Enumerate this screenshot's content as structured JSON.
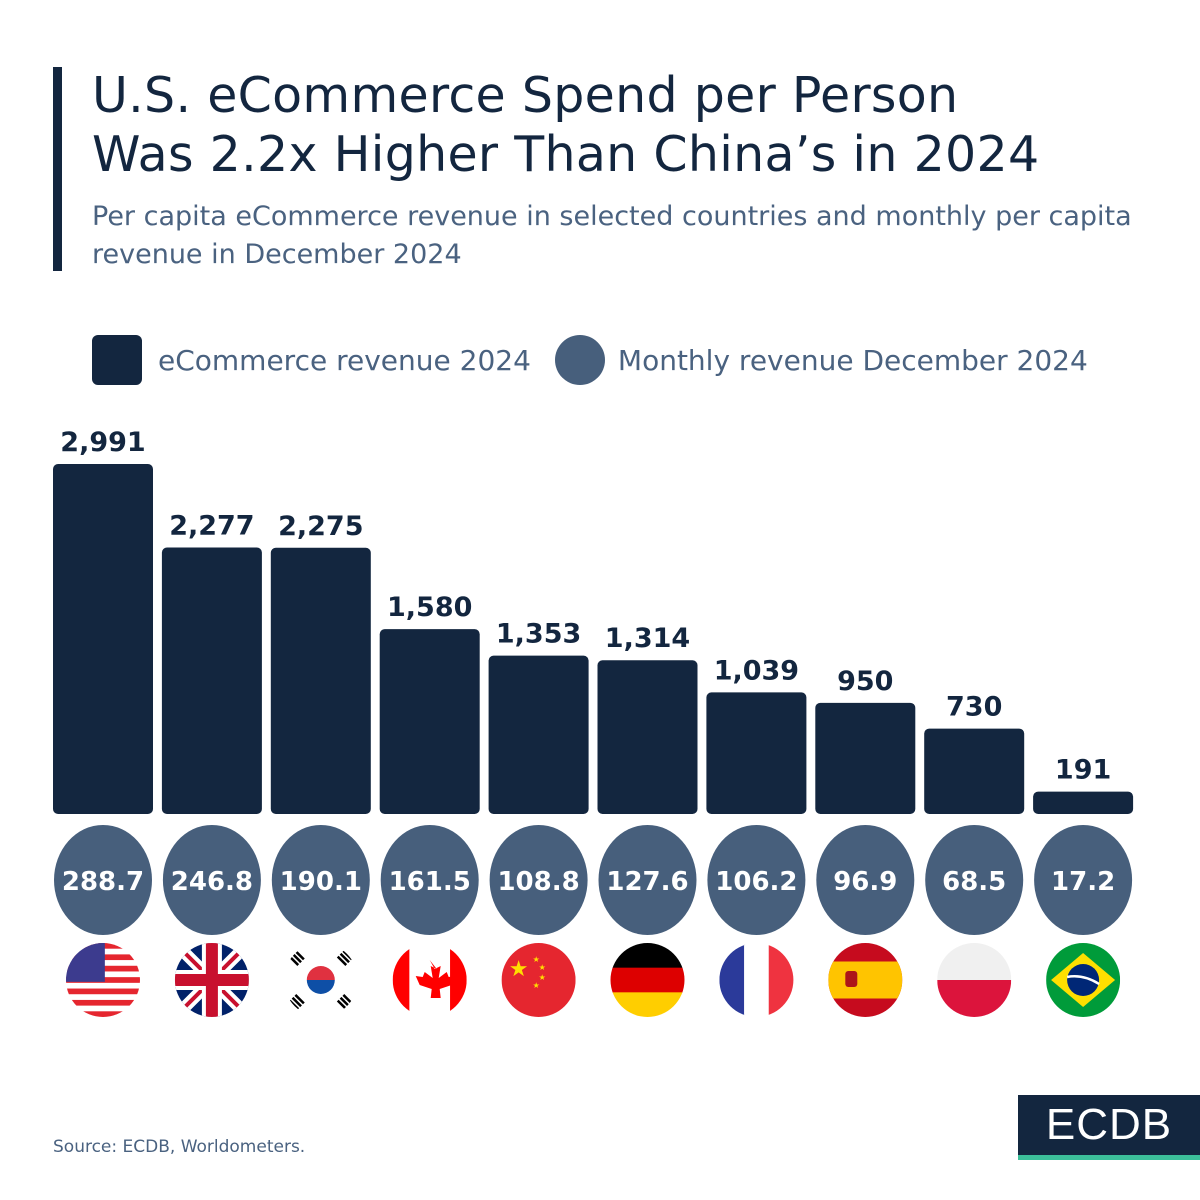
{
  "header": {
    "title_line1": "U.S. eCommerce Spend per Person",
    "title_line2": "Was 2.2x Higher Than China’s in 2024",
    "subtitle": "Per capita eCommerce revenue in selected countries and monthly per capita revenue in December 2024"
  },
  "chart_data": {
    "type": "bar",
    "categories": [
      "us-flag",
      "uk-flag",
      "south-korea-flag",
      "canada-flag",
      "china-flag",
      "germany-flag",
      "france-flag",
      "spain-flag",
      "poland-flag",
      "brazil-flag"
    ],
    "series": [
      {
        "name": "eCommerce revenue 2024",
        "values": [
          2991,
          2277,
          2275,
          1580,
          1353,
          1314,
          1039,
          950,
          730,
          191
        ],
        "labels": [
          "2,991",
          "2,277",
          "2,275",
          "1,580",
          "1,353",
          "1,314",
          "1,039",
          "950",
          "730",
          "191"
        ],
        "color": "#13263f"
      },
      {
        "name": "Monthly revenue December 2024",
        "values": [
          288.7,
          246.8,
          190.1,
          161.5,
          108.8,
          127.6,
          106.2,
          96.9,
          68.5,
          17.2
        ],
        "labels": [
          "288.7",
          "246.8",
          "190.1",
          "161.5",
          "108.8",
          "127.6",
          "106.2",
          "96.9",
          "68.5",
          "17.2"
        ],
        "color": "#475f7c"
      }
    ],
    "legend": "top-left",
    "grid": false
  },
  "footer": {
    "source": "Source: ECDB, Worldometers.",
    "logo": "ECDB"
  }
}
